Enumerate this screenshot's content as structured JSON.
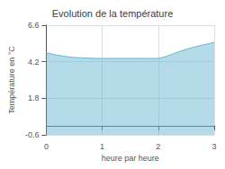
{
  "chart_data": {
    "type": "line",
    "area": true,
    "title": "Evolution de la température",
    "xlabel": "heure par heure",
    "ylabel": "Température en °C",
    "color": "#6ab8d0",
    "x": [
      0.0,
      0.1,
      0.2,
      0.3,
      0.4,
      0.5,
      0.6,
      0.7,
      0.8,
      0.9,
      1.0,
      1.1,
      1.2,
      1.3,
      1.4,
      1.5,
      1.6,
      1.7,
      1.8,
      1.9,
      2.0,
      2.1,
      2.2,
      2.3,
      2.4,
      2.5,
      2.6,
      2.7,
      2.8,
      2.9,
      3.0
    ],
    "values": [
      4.78,
      4.7,
      4.63,
      4.57,
      4.52,
      4.48,
      4.46,
      4.44,
      4.43,
      4.42,
      4.42,
      4.42,
      4.42,
      4.42,
      4.42,
      4.42,
      4.42,
      4.42,
      4.42,
      4.42,
      4.42,
      4.5,
      4.63,
      4.76,
      4.9,
      5.02,
      5.12,
      5.22,
      5.3,
      5.38,
      5.48
    ],
    "xlim": [
      0,
      3
    ],
    "ylim": [
      -0.6,
      6.6
    ],
    "xticks": [
      0,
      1,
      2,
      3
    ],
    "yticks": [
      -0.6,
      1.8,
      4.2,
      6.6
    ],
    "grid": true
  }
}
